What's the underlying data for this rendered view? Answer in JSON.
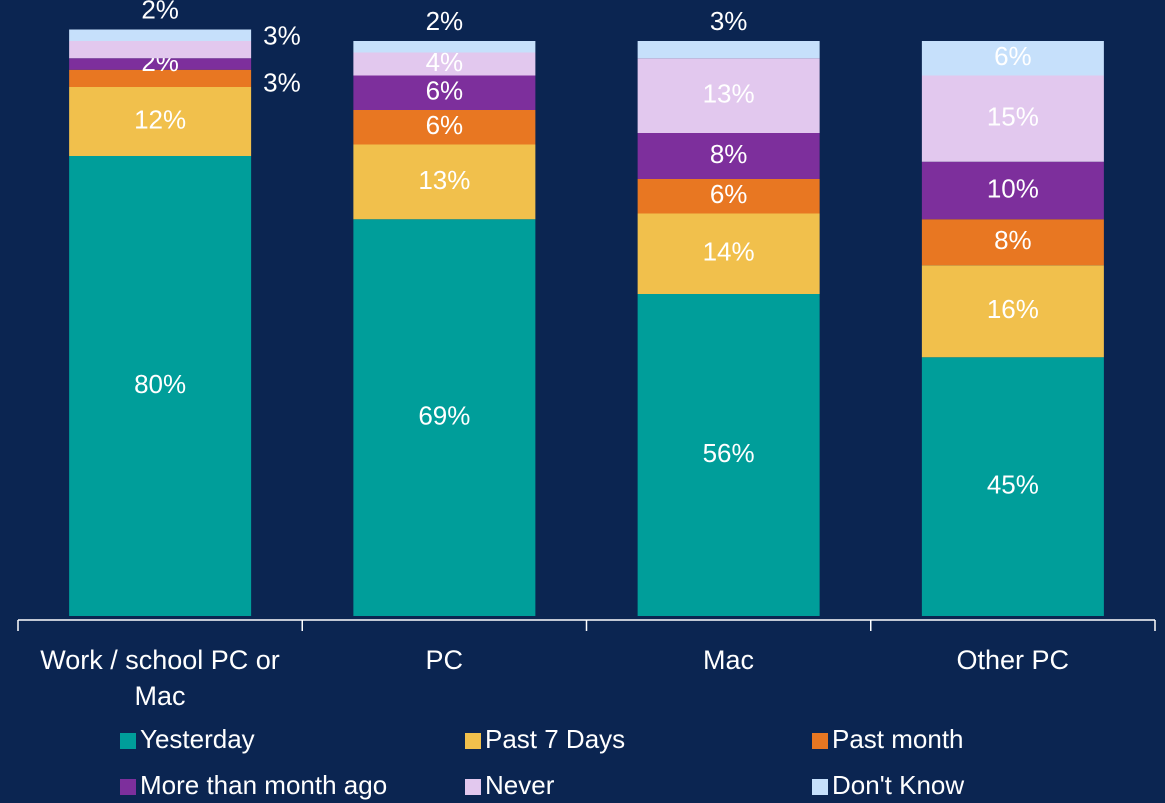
{
  "chart_data": {
    "type": "stacked_bar",
    "categories": [
      "Work / school PC or Mac",
      "PC",
      "Mac",
      "Other PC"
    ],
    "series": [
      {
        "name": "Yesterday",
        "color": "#009e9a",
        "values": [
          80,
          69,
          56,
          45
        ],
        "value_labels": [
          "80%",
          "69%",
          "56%",
          "45%"
        ]
      },
      {
        "name": "Past 7 Days",
        "color": "#f1c04c",
        "values": [
          12,
          13,
          14,
          16
        ],
        "value_labels": [
          "12%",
          "13%",
          "14%",
          "16%"
        ]
      },
      {
        "name": "Past month",
        "color": "#e87722",
        "values": [
          3,
          6,
          6,
          8
        ],
        "value_labels": [
          "3%",
          "6%",
          "6%",
          "8%"
        ]
      },
      {
        "name": "More than month ago",
        "color": "#7d2f9c",
        "values": [
          2,
          6,
          8,
          10
        ],
        "value_labels": [
          "2%",
          "6%",
          "8%",
          "10%"
        ]
      },
      {
        "name": "Never",
        "color": "#e2c8ee",
        "values": [
          3,
          4,
          13,
          15
        ],
        "value_labels": [
          "3%",
          "4%",
          "13%",
          "15%"
        ]
      },
      {
        "name": "Don't Know",
        "color": "#c6e0fb",
        "values": [
          2,
          2,
          3,
          6
        ],
        "value_labels": [
          "2%",
          "2%",
          "3%",
          "6%"
        ]
      }
    ],
    "ylim": [
      0,
      100
    ]
  }
}
